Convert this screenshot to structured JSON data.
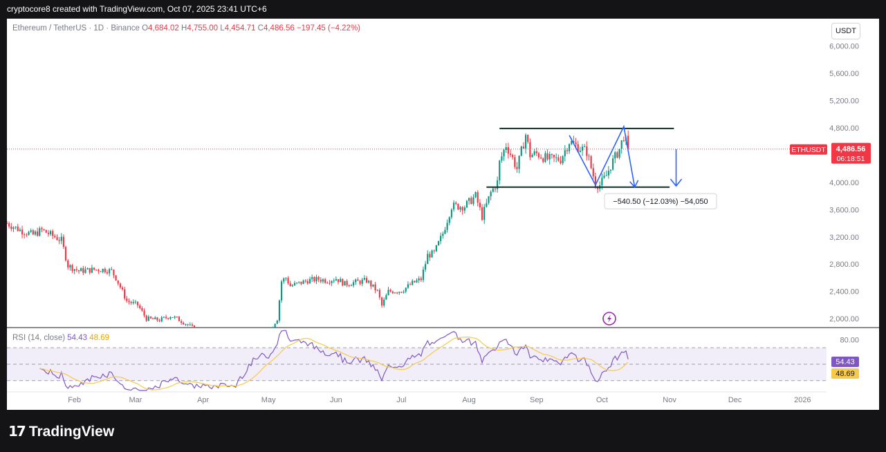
{
  "header": {
    "credit": "cryptocore8 created with TradingView.com, Oct 07, 2025 23:41 UTC+6"
  },
  "legend": {
    "symbol": "Ethereum / TetherUS · 1D · Binance",
    "open_label": "O",
    "open": "4,684.02",
    "high_label": "H",
    "high": "4,755.00",
    "low_label": "L",
    "low": "4,454.71",
    "close_label": "C",
    "close": "4,486.56",
    "change": "−197.45 (−4.22%)"
  },
  "currency_button": "USDT",
  "price_badge": {
    "symbol": "ETHUSDT",
    "price": "4,486.56",
    "countdown": "06:18:51"
  },
  "measure_label": "−540.50 (−12.03%) −54,050",
  "rsi": {
    "label": "RSI (14, close)",
    "value": "54.43",
    "ma": "48.69",
    "axis_label": "80.00"
  },
  "footer": {
    "brand": "TradingView"
  },
  "colors": {
    "up": "#089981",
    "down": "#f23645",
    "rsi_line": "#7e57c2",
    "rsi_ma": "#f7c948",
    "drawing": "#2962ff"
  },
  "chart_data": {
    "type": "candlestick",
    "symbol": "ETHUSDT",
    "y_ticks": [
      2000,
      2400,
      2800,
      3200,
      3600,
      4000,
      4400,
      4800,
      5200,
      5600,
      6000
    ],
    "y_tick_labels": [
      "2,000.00",
      "2,400.00",
      "2,800.00",
      "3,200.00",
      "3,600.00",
      "4,000.00",
      "4,400.00",
      "4,800.00",
      "5,200.00",
      "5,600.00",
      "6,000.00"
    ],
    "x_labels": [
      "Feb",
      "Mar",
      "Apr",
      "May",
      "Jun",
      "Jul",
      "Aug",
      "Sep",
      "Oct",
      "Nov",
      "Dec",
      "2026"
    ],
    "x_label_days": [
      31,
      59,
      90,
      120,
      151,
      181,
      212,
      243,
      273,
      304,
      334,
      365
    ],
    "day_range": [
      0,
      376
    ],
    "price_range": [
      1870,
      6400
    ],
    "last_price": 4486.56,
    "trend_anchors": [
      [
        0,
        3400
      ],
      [
        6,
        3300
      ],
      [
        12,
        3230
      ],
      [
        16,
        3300
      ],
      [
        22,
        3200
      ],
      [
        25,
        3150
      ],
      [
        28,
        2780
      ],
      [
        33,
        2700
      ],
      [
        40,
        2720
      ],
      [
        45,
        2720
      ],
      [
        48,
        2700
      ],
      [
        50,
        2600
      ],
      [
        55,
        2260
      ],
      [
        60,
        2200
      ],
      [
        64,
        2000
      ],
      [
        70,
        1980
      ],
      [
        75,
        2040
      ],
      [
        78,
        2000
      ],
      [
        81,
        1950
      ],
      [
        85,
        1870
      ],
      [
        95,
        1700
      ],
      [
        105,
        1620
      ],
      [
        115,
        1800
      ],
      [
        121,
        1850
      ],
      [
        124,
        2000
      ],
      [
        126,
        2550
      ],
      [
        128,
        2600
      ],
      [
        130,
        2480
      ],
      [
        138,
        2560
      ],
      [
        143,
        2580
      ],
      [
        147,
        2560
      ],
      [
        151,
        2590
      ],
      [
        155,
        2510
      ],
      [
        159,
        2530
      ],
      [
        165,
        2560
      ],
      [
        170,
        2400
      ],
      [
        172,
        2190
      ],
      [
        175,
        2400
      ],
      [
        181,
        2410
      ],
      [
        186,
        2520
      ],
      [
        190,
        2580
      ],
      [
        193,
        2930
      ],
      [
        196,
        2960
      ],
      [
        200,
        3250
      ],
      [
        204,
        3650
      ],
      [
        210,
        3650
      ],
      [
        215,
        3800
      ],
      [
        218,
        3500
      ],
      [
        222,
        3850
      ],
      [
        225,
        4000
      ],
      [
        226,
        4290
      ],
      [
        227,
        4380
      ],
      [
        229,
        4550
      ],
      [
        232,
        4350
      ],
      [
        234,
        4200
      ],
      [
        238,
        4700
      ],
      [
        240,
        4400
      ],
      [
        243,
        4420
      ],
      [
        248,
        4340
      ],
      [
        254,
        4340
      ],
      [
        258,
        4600
      ],
      [
        262,
        4520
      ],
      [
        266,
        4450
      ],
      [
        270,
        3980
      ],
      [
        272,
        3960
      ],
      [
        275,
        4100
      ],
      [
        277,
        4250
      ],
      [
        281,
        4490
      ],
      [
        283,
        4680
      ],
      [
        285,
        4486
      ]
    ],
    "levels": {
      "resistance": 4790,
      "support": 3930
    },
    "projection": {
      "from": 4486,
      "to": 3946,
      "change": -540.5,
      "change_pct": -12.03
    },
    "rsi_params": {
      "length": 14,
      "source": "close",
      "band_upper": 70,
      "band_mid": 50,
      "band_lower": 30,
      "axis_tick": 80,
      "range": [
        18,
        92
      ]
    }
  }
}
